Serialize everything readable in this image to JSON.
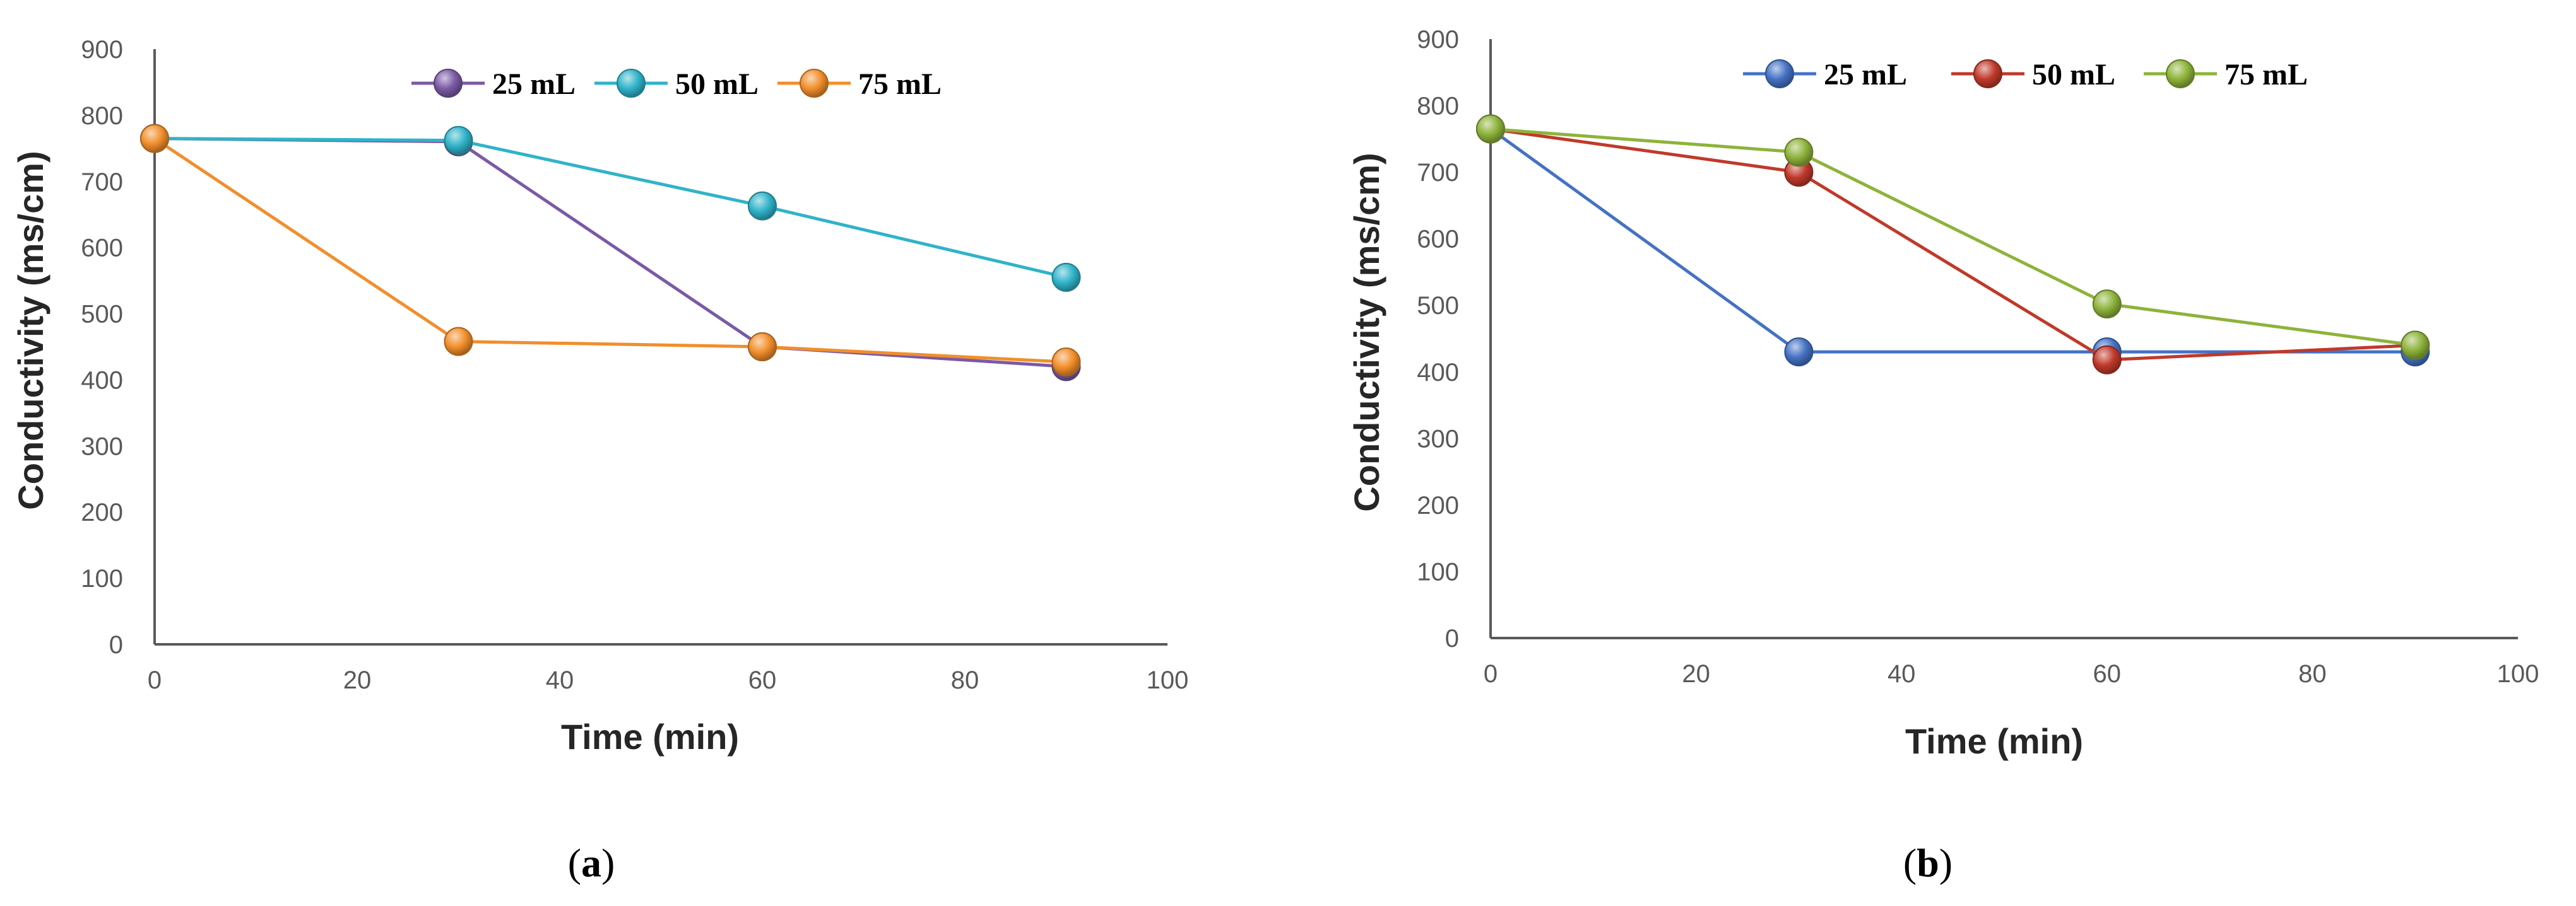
{
  "chart_data": [
    {
      "type": "line",
      "panel_label": "a",
      "xlabel": "Time (min)",
      "ylabel": "Conductivity (ms/cm)",
      "xlim": [
        0,
        100
      ],
      "ylim": [
        0,
        900
      ],
      "xticks": [
        0,
        20,
        40,
        60,
        80,
        100
      ],
      "yticks": [
        0,
        100,
        200,
        300,
        400,
        500,
        600,
        700,
        800,
        900
      ],
      "x": [
        0,
        30,
        60,
        90
      ],
      "series": [
        {
          "name": "25 mL",
          "color": "#7a5aa6",
          "values": [
            765,
            760,
            450,
            420
          ]
        },
        {
          "name": "50 mL",
          "color": "#2fb3c9",
          "values": [
            765,
            762,
            663,
            555
          ]
        },
        {
          "name": "75 mL",
          "color": "#f28e2b",
          "values": [
            765,
            458,
            450,
            427
          ]
        }
      ]
    },
    {
      "type": "line",
      "panel_label": "b",
      "xlabel": "Time (min)",
      "ylabel": "Conductivity  (ms/cm)",
      "xlim": [
        0,
        100
      ],
      "ylim": [
        0,
        900
      ],
      "xticks": [
        0,
        20,
        40,
        60,
        80,
        100
      ],
      "yticks": [
        0,
        100,
        200,
        300,
        400,
        500,
        600,
        700,
        800,
        900
      ],
      "x": [
        0,
        30,
        60,
        90
      ],
      "series": [
        {
          "name": "25 mL",
          "color": "#4472c4",
          "values": [
            765,
            430,
            430,
            430
          ]
        },
        {
          "name": "50 mL",
          "color": "#c0392b",
          "values": [
            765,
            700,
            418,
            440
          ]
        },
        {
          "name": "75 mL",
          "color": "#8db33a",
          "values": [
            765,
            730,
            502,
            440
          ]
        }
      ]
    }
  ]
}
